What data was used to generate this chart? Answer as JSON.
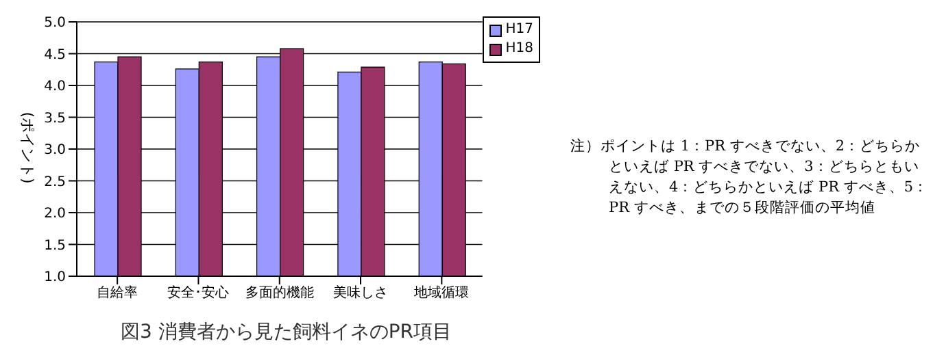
{
  "chart_data": {
    "type": "bar",
    "title": "図3 消費者から見た飼料イネのPR項目",
    "ylabel": "(ポイント)",
    "categories": [
      "自給率",
      "安全･安心",
      "多面的機能",
      "美味しさ",
      "地域循環"
    ],
    "series": [
      {
        "name": "H17",
        "color": "#9999ff",
        "values": [
          4.37,
          4.26,
          4.45,
          4.21,
          4.37
        ]
      },
      {
        "name": "H18",
        "color": "#993366",
        "values": [
          4.45,
          4.37,
          4.58,
          4.29,
          4.34
        ]
      }
    ],
    "ylim": [
      1.0,
      5.0
    ],
    "yticks": [
      {
        "value": 1,
        "label": "1.0"
      },
      {
        "value": 1.5,
        "label": "1.5"
      },
      {
        "value": 2,
        "label": "2.0"
      },
      {
        "value": 2.5,
        "label": "2.5"
      },
      {
        "value": 3,
        "label": "3.0"
      },
      {
        "value": 3.5,
        "label": "3.5"
      },
      {
        "value": 4,
        "label": "4.0"
      },
      {
        "value": 4.5,
        "label": "4.5"
      },
      {
        "value": 5,
        "label": "5.0"
      }
    ],
    "grid": "y",
    "legend": "top right",
    "annotations": [
      "注）ポイントは 1：PR すべきでない、2：どちらかといえば PR すべきでない、3：どちらともいえない、4：どちらかといえば PR すべき、5：PR すべき、までの５段階評価の平均値"
    ]
  }
}
